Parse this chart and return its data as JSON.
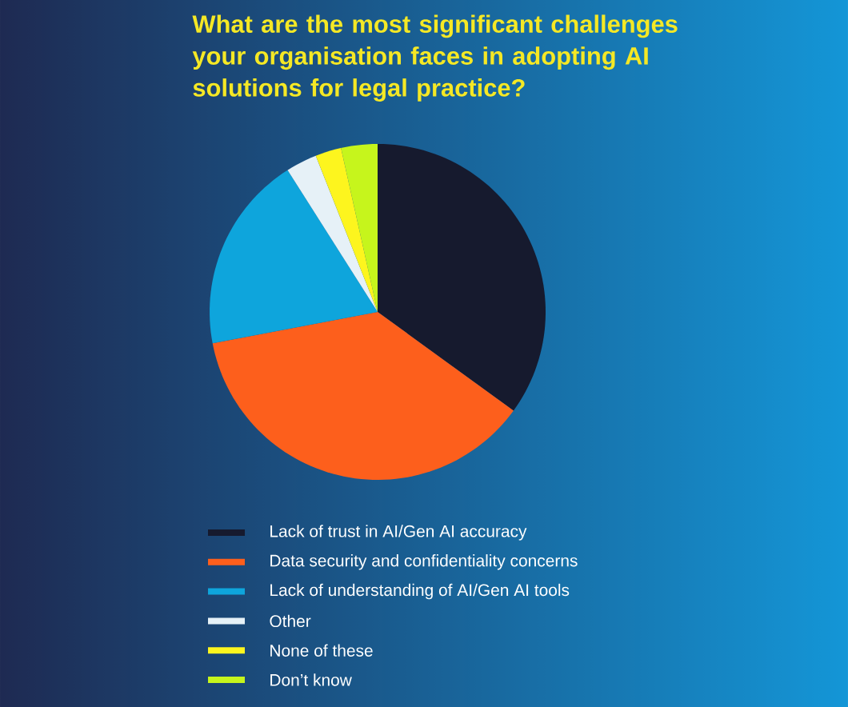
{
  "chart_data": {
    "type": "pie",
    "title": "What are the most significant challenges your organisation faces in adopting AI solutions for legal practice?",
    "categories": [
      "Lack of trust in AI/Gen AI accuracy",
      "Data security and confidentiality concerns",
      "Lack of understanding of AI/Gen AI tools",
      "Other",
      "None of these",
      "Don’t know"
    ],
    "values": [
      35,
      37,
      19,
      3,
      2.5,
      3.5
    ],
    "colors": [
      "#161a2e",
      "#fd5f1c",
      "#0ea5dc",
      "#e6f1f7",
      "#fdf51e",
      "#c6f51c"
    ],
    "legend": "bottom"
  }
}
